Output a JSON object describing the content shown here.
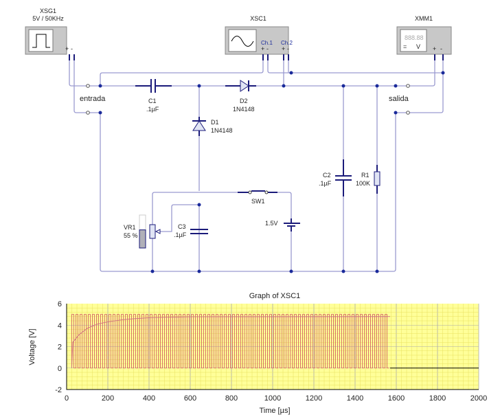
{
  "instruments": {
    "generator": {
      "name": "XSG1",
      "setting": "5V / 50KHz",
      "plus": "+",
      "minus": "-"
    },
    "oscilloscope": {
      "name": "XSC1",
      "ch1": "Ch.1",
      "ch2": "Ch.2",
      "plus": "+",
      "minus": "-"
    },
    "multimeter": {
      "name": "XMM1",
      "display": "888.88",
      "mode": "=",
      "unit": "V",
      "plus": "+",
      "minus": "-"
    }
  },
  "terminals": {
    "input": "entrada",
    "output": "salida"
  },
  "components": {
    "C1": {
      "name": "C1",
      "value": ".1µF"
    },
    "D2": {
      "name": "D2",
      "value": "1N4148"
    },
    "D1": {
      "name": "D1",
      "value": "1N4148"
    },
    "C2": {
      "name": "C2",
      "value": ".1µF"
    },
    "R1": {
      "name": "R1",
      "value": "100K"
    },
    "SW1": {
      "name": "SW1"
    },
    "battery": {
      "value": "1.5V"
    },
    "VR1": {
      "name": "VR1",
      "value": "55 %",
      "level": 0.55
    },
    "C3": {
      "name": "C3",
      "value": ".1µF"
    }
  },
  "colors": {
    "wire": "#9a9ad0",
    "component": "#1a1a7a",
    "junction": "#1a2a9a",
    "plot_bg": "#ffff99",
    "trace": "#d05060"
  },
  "chart_data": {
    "type": "line",
    "title": "Graph of XSC1",
    "xlabel": "Time [µs]",
    "ylabel": "Voltage [V]",
    "xlim": [
      0,
      2000
    ],
    "ylim": [
      -2,
      6
    ],
    "xticks": [
      "0",
      "200",
      "400",
      "600",
      "800",
      "1000",
      "1200",
      "1400",
      "1600",
      "1800",
      "2000"
    ],
    "yticks": [
      "6",
      "4",
      "2",
      "0",
      "-2"
    ],
    "grid": true,
    "series": [
      {
        "kind": "square",
        "color": "#d05060",
        "low": 0,
        "high": 5,
        "period_us": 20,
        "start_us": 25,
        "end_us": 1565
      },
      {
        "kind": "line",
        "color": "#d07080",
        "x": [
          25,
          30,
          60,
          80,
          100,
          150,
          200,
          270,
          330,
          410,
          600,
          1570
        ],
        "y": [
          0,
          2.4,
          3.1,
          3.4,
          3.7,
          4.1,
          4.3,
          4.5,
          4.6,
          4.7,
          4.78,
          4.8
        ]
      },
      {
        "kind": "line",
        "color": "#000000",
        "x": [
          1570,
          2000
        ],
        "y": [
          0,
          0
        ]
      }
    ]
  }
}
